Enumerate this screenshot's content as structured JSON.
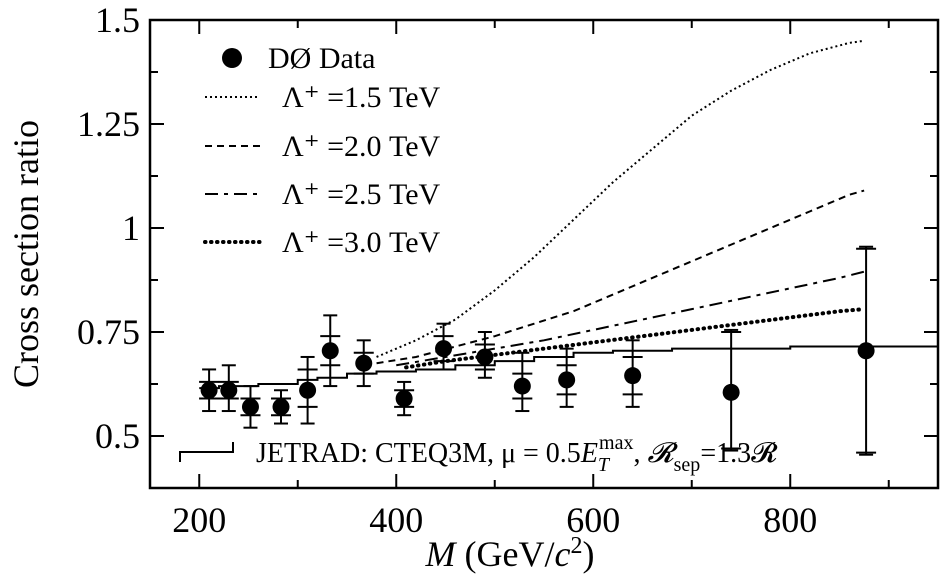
{
  "chart_data": {
    "type": "scatter",
    "xlabel": "M (GeV/c²)",
    "ylabel": "Cross section ratio",
    "xlim": [
      150,
      950
    ],
    "ylim": [
      0.375,
      1.5
    ],
    "x_ticks": [
      200,
      400,
      600,
      800
    ],
    "y_ticks": [
      0.5,
      0.75,
      1,
      1.25,
      1.5
    ],
    "x_tick_labels": [
      "200",
      "400",
      "600",
      "800"
    ],
    "y_tick_labels": [
      "0.5",
      "0.75",
      "1",
      "1.25",
      "1.5"
    ],
    "grid": false,
    "legend_position": "top-left",
    "data_series": {
      "name": "DØ Data",
      "points": [
        {
          "x": 210,
          "y": 0.61,
          "stat_lo": 0.59,
          "stat_hi": 0.63,
          "sys_lo": 0.56,
          "sys_hi": 0.66
        },
        {
          "x": 230,
          "y": 0.61,
          "stat_lo": 0.59,
          "stat_hi": 0.63,
          "sys_lo": 0.56,
          "sys_hi": 0.67
        },
        {
          "x": 252,
          "y": 0.57,
          "stat_lo": 0.55,
          "stat_hi": 0.59,
          "sys_lo": 0.52,
          "sys_hi": 0.62
        },
        {
          "x": 283,
          "y": 0.57,
          "stat_lo": 0.55,
          "stat_hi": 0.59,
          "sys_lo": 0.53,
          "sys_hi": 0.61
        },
        {
          "x": 310,
          "y": 0.61,
          "stat_lo": 0.57,
          "stat_hi": 0.66,
          "sys_lo": 0.53,
          "sys_hi": 0.69
        },
        {
          "x": 333,
          "y": 0.705,
          "stat_lo": 0.67,
          "stat_hi": 0.74,
          "sys_lo": 0.62,
          "sys_hi": 0.79
        },
        {
          "x": 367,
          "y": 0.675,
          "stat_lo": 0.65,
          "stat_hi": 0.7,
          "sys_lo": 0.62,
          "sys_hi": 0.73
        },
        {
          "x": 408,
          "y": 0.59,
          "stat_lo": 0.57,
          "stat_hi": 0.61,
          "sys_lo": 0.55,
          "sys_hi": 0.63
        },
        {
          "x": 448,
          "y": 0.71,
          "stat_lo": 0.68,
          "stat_hi": 0.74,
          "sys_lo": 0.66,
          "sys_hi": 0.77
        },
        {
          "x": 490,
          "y": 0.69,
          "stat_lo": 0.66,
          "stat_hi": 0.72,
          "sys_lo": 0.64,
          "sys_hi": 0.75
        },
        {
          "x": 528,
          "y": 0.62,
          "stat_lo": 0.59,
          "stat_hi": 0.65,
          "sys_lo": 0.56,
          "sys_hi": 0.7
        },
        {
          "x": 573,
          "y": 0.635,
          "stat_lo": 0.6,
          "stat_hi": 0.67,
          "sys_lo": 0.57,
          "sys_hi": 0.71
        },
        {
          "x": 640,
          "y": 0.645,
          "stat_lo": 0.6,
          "stat_hi": 0.69,
          "sys_lo": 0.57,
          "sys_hi": 0.73
        },
        {
          "x": 740,
          "y": 0.605,
          "stat_lo": 0.47,
          "stat_hi": 0.75,
          "sys_lo": 0.465,
          "sys_hi": 0.755
        },
        {
          "x": 877,
          "y": 0.705,
          "stat_lo": 0.46,
          "stat_hi": 0.95,
          "sys_lo": 0.455,
          "sys_hi": 0.955
        }
      ]
    },
    "series": [
      {
        "name": "Λ⁺ =1.5 TeV",
        "style": "dotted",
        "x": [
          380,
          420,
          460,
          500,
          540,
          580,
          620,
          660,
          700,
          740,
          780,
          820,
          860,
          875
        ],
        "y": [
          0.69,
          0.73,
          0.78,
          0.85,
          0.93,
          1.02,
          1.11,
          1.19,
          1.27,
          1.33,
          1.38,
          1.42,
          1.445,
          1.45
        ]
      },
      {
        "name": "Λ⁺ =2.0 TeV",
        "style": "dashed",
        "x": [
          380,
          420,
          460,
          500,
          540,
          580,
          620,
          660,
          700,
          740,
          780,
          820,
          860,
          875
        ],
        "y": [
          0.675,
          0.69,
          0.715,
          0.74,
          0.77,
          0.8,
          0.84,
          0.88,
          0.92,
          0.96,
          1.0,
          1.04,
          1.08,
          1.09
        ]
      },
      {
        "name": "Λ⁺ =2.5 TeV",
        "style": "dashdot",
        "x": [
          400,
          450,
          500,
          550,
          600,
          650,
          700,
          750,
          800,
          850,
          875
        ],
        "y": [
          0.67,
          0.69,
          0.71,
          0.73,
          0.755,
          0.78,
          0.805,
          0.83,
          0.855,
          0.88,
          0.895
        ]
      },
      {
        "name": "Λ⁺ =3.0 TeV",
        "style": "thickdotted",
        "x": [
          410,
          450,
          500,
          550,
          600,
          650,
          700,
          750,
          800,
          850,
          875
        ],
        "y": [
          0.665,
          0.68,
          0.695,
          0.71,
          0.725,
          0.74,
          0.755,
          0.77,
          0.785,
          0.8,
          0.805
        ]
      },
      {
        "name": "JETRAD",
        "style": "step",
        "x": [
          200,
          220,
          240,
          260,
          300,
          320,
          350,
          380,
          420,
          460,
          500,
          540,
          580,
          620,
          680,
          800,
          950
        ],
        "y": [
          0.615,
          0.62,
          0.62,
          0.625,
          0.635,
          0.64,
          0.65,
          0.655,
          0.66,
          0.67,
          0.68,
          0.69,
          0.7,
          0.705,
          0.71,
          0.715,
          0.71
        ]
      }
    ],
    "jetrad_label": {
      "prefix": "JETRAD: CTEQ3M,",
      "mu": "μ",
      "equals": "= 0.5",
      "ET": "E",
      "ET_sub": "T",
      "ET_sup": "max",
      "comma": ",",
      "R": "𝓡",
      "R_sub": "sep",
      "R_tail": "=1.3𝓡"
    }
  }
}
